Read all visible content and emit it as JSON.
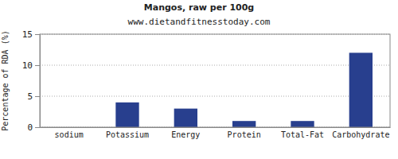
{
  "chart_data": {
    "type": "bar",
    "title": "Mangos, raw per 100g",
    "subtitle": "www.dietandfitnesstoday.com",
    "y_label": "Percentage of RDA (%)",
    "categories": [
      "sodium",
      "Potassium",
      "Energy",
      "Protein",
      "Total-Fat",
      "Carbohydrate"
    ],
    "values": [
      0,
      4,
      3,
      1,
      1,
      12
    ],
    "color": "#283f8e",
    "ylim": [
      0,
      15
    ],
    "yticks": [
      0,
      5,
      10,
      15
    ],
    "grid": true
  }
}
